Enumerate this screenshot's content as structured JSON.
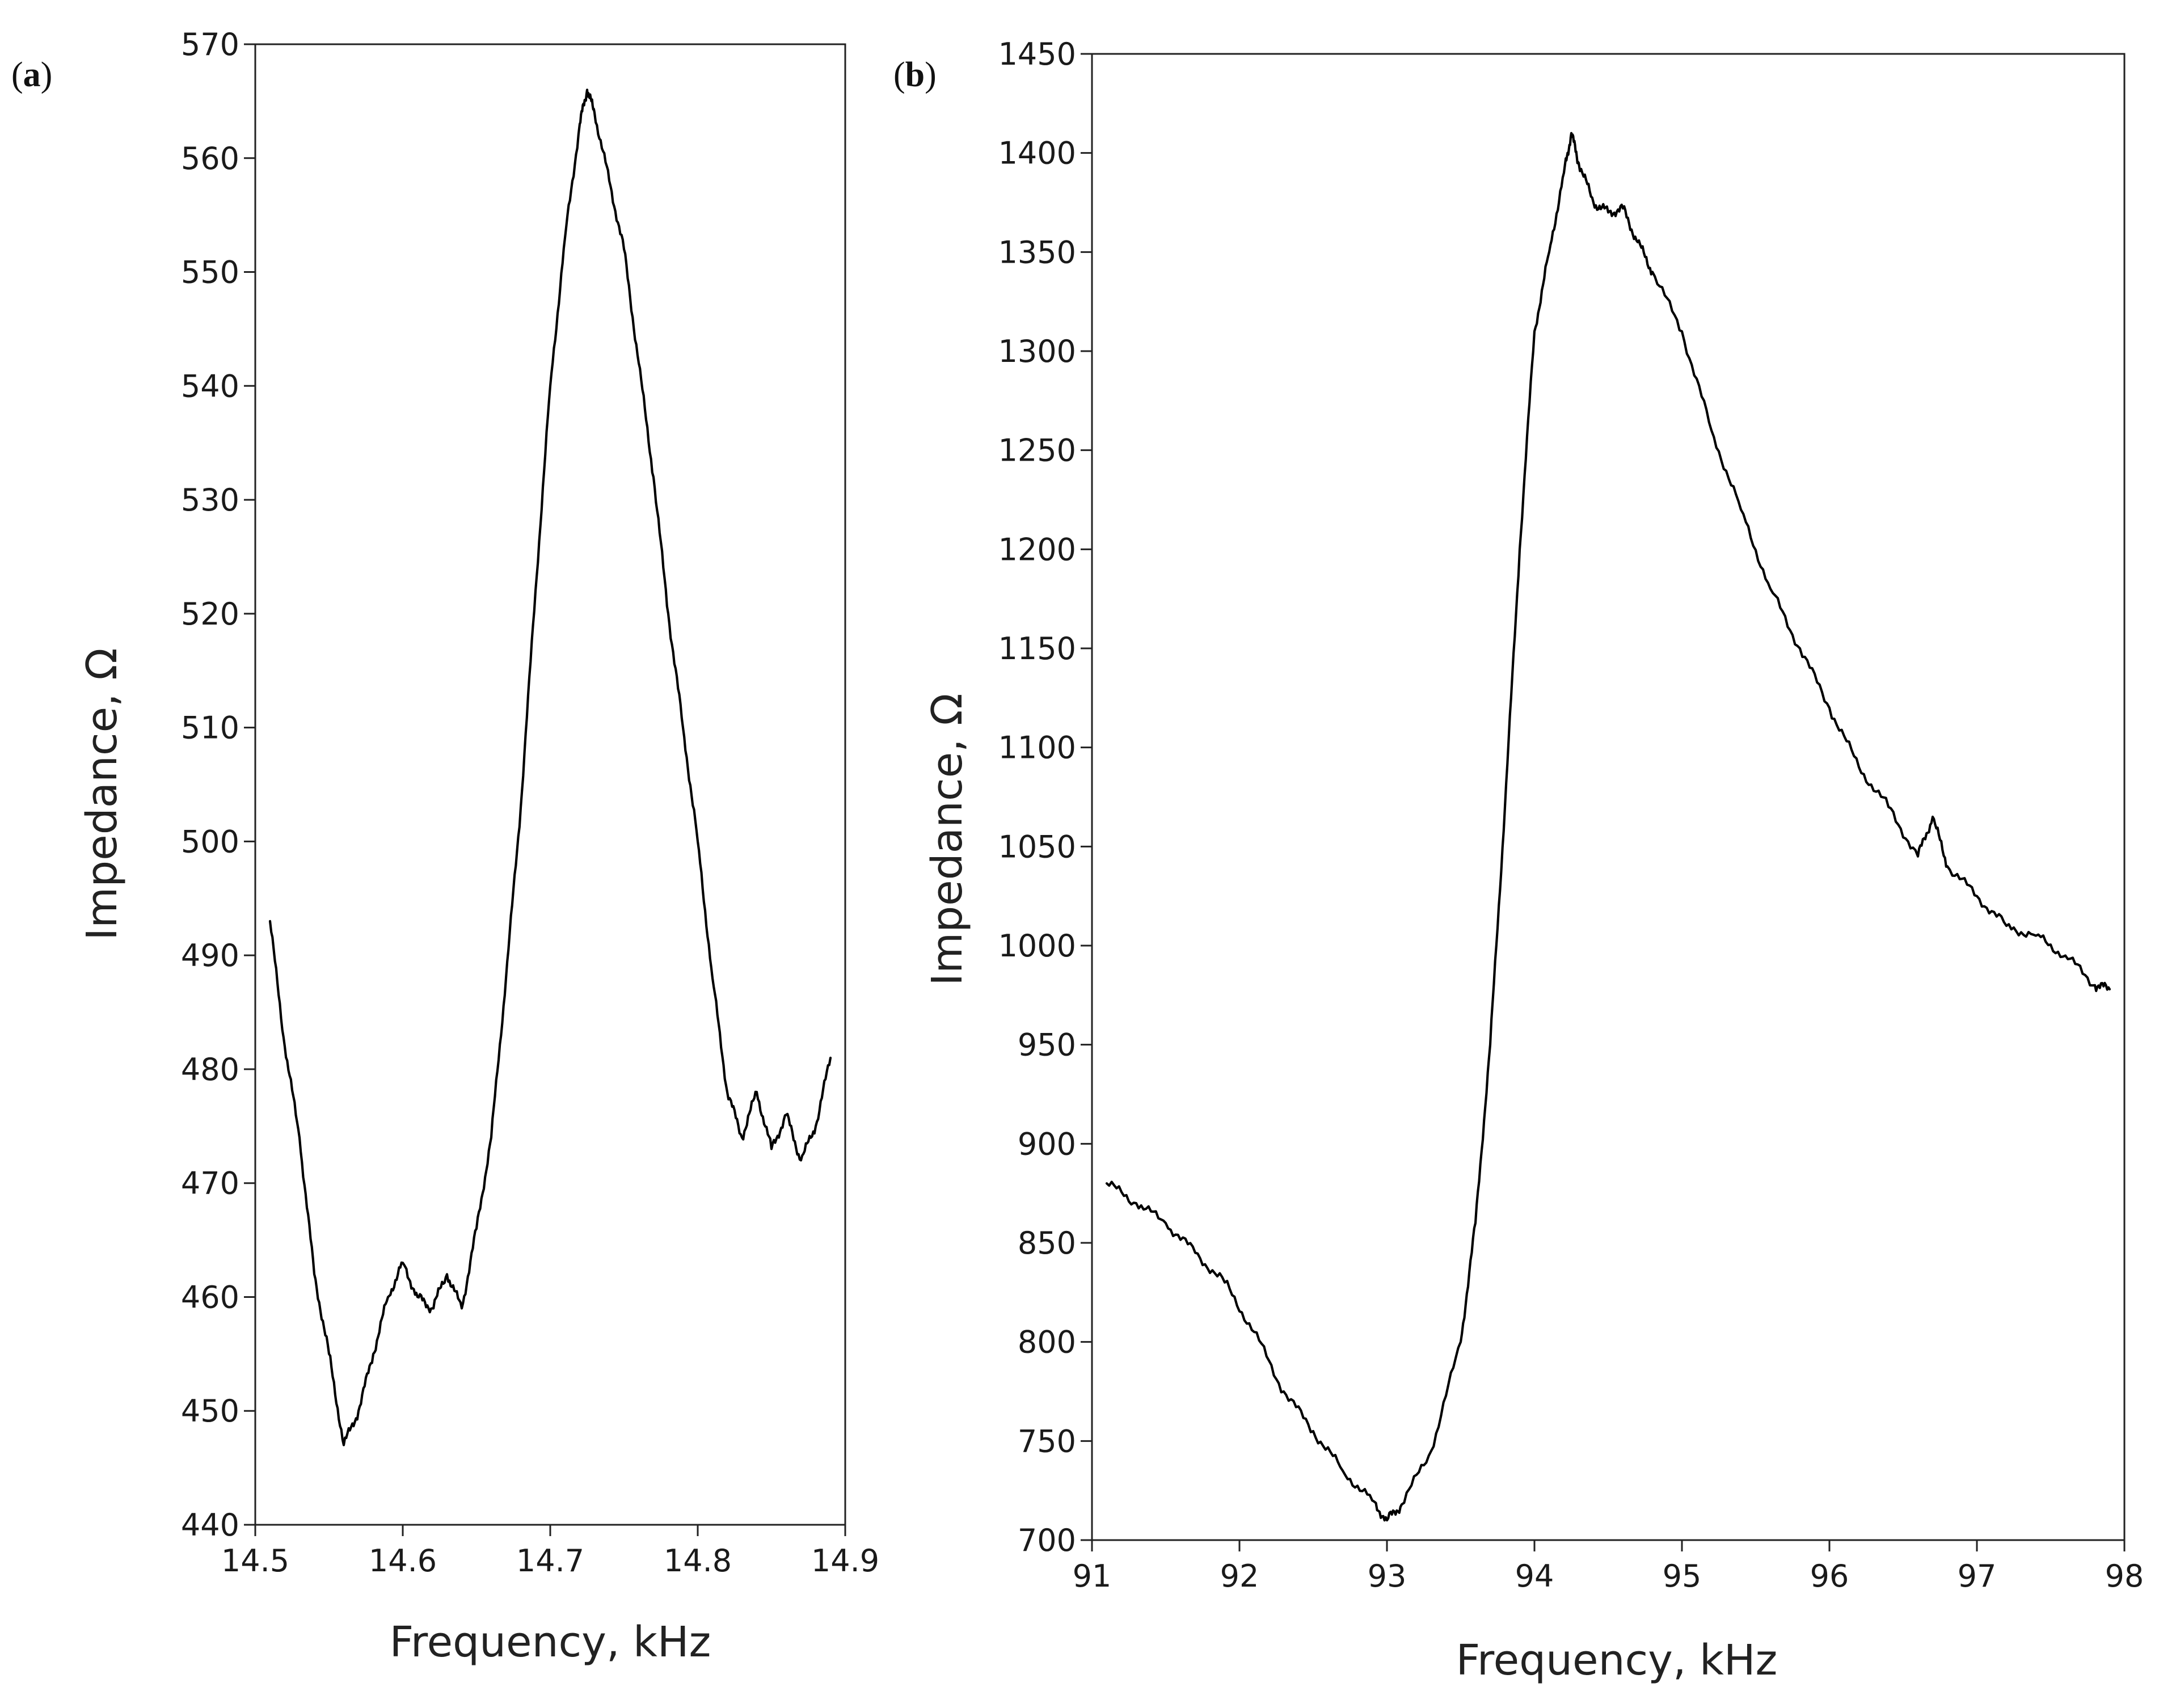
{
  "chart_data": [
    {
      "type": "line",
      "panel_label": "a",
      "xlabel": "Frequency, kHz",
      "ylabel": "Impedance, Ω",
      "xlim": [
        14.5,
        14.9
      ],
      "ylim": [
        440,
        570
      ],
      "xticks": [
        "14.5",
        "14.6",
        "14.7",
        "14.8",
        "14.9"
      ],
      "yticks": [
        "440",
        "450",
        "460",
        "470",
        "480",
        "490",
        "500",
        "510",
        "520",
        "530",
        "540",
        "550",
        "560",
        "570"
      ],
      "grid": false,
      "series": [
        {
          "name": "impedance",
          "color": "#000000",
          "x": [
            14.51,
            14.52,
            14.53,
            14.54,
            14.55,
            14.56,
            14.57,
            14.58,
            14.59,
            14.6,
            14.61,
            14.62,
            14.63,
            14.64,
            14.65,
            14.66,
            14.67,
            14.68,
            14.69,
            14.7,
            14.71,
            14.72,
            14.725,
            14.73,
            14.74,
            14.75,
            14.76,
            14.77,
            14.78,
            14.79,
            14.8,
            14.81,
            14.82,
            14.83,
            14.84,
            14.85,
            14.86,
            14.87,
            14.88,
            14.89
          ],
          "y": [
            493,
            482,
            474,
            462,
            455,
            447,
            450,
            455,
            460,
            463,
            460,
            459,
            462,
            459,
            466,
            474,
            488,
            503,
            522,
            540,
            553,
            563,
            566,
            564,
            558,
            552,
            542,
            532,
            520,
            510,
            500,
            488,
            478,
            474,
            478,
            473,
            476,
            472,
            475,
            481
          ]
        }
      ]
    },
    {
      "type": "line",
      "panel_label": "b",
      "xlabel": "Frequency, kHz",
      "ylabel": "Impedance, Ω",
      "xlim": [
        91,
        98
      ],
      "ylim": [
        700,
        1450
      ],
      "xticks": [
        "91",
        "92",
        "93",
        "94",
        "95",
        "96",
        "97",
        "98"
      ],
      "yticks": [
        "700",
        "750",
        "800",
        "850",
        "900",
        "950",
        "1000",
        "1050",
        "1100",
        "1150",
        "1200",
        "1250",
        "1300",
        "1350",
        "1400",
        "1450"
      ],
      "grid": false,
      "series": [
        {
          "name": "impedance",
          "color": "#000000",
          "x": [
            91.1,
            91.3,
            91.5,
            91.7,
            91.9,
            92.1,
            92.3,
            92.5,
            92.7,
            92.9,
            93.0,
            93.1,
            93.3,
            93.5,
            93.6,
            93.7,
            93.8,
            93.9,
            94.0,
            94.1,
            94.2,
            94.25,
            94.3,
            94.4,
            94.5,
            94.6,
            94.7,
            94.8,
            95.0,
            95.2,
            95.4,
            95.6,
            95.8,
            96.0,
            96.2,
            96.4,
            96.6,
            96.7,
            96.8,
            97.0,
            97.2,
            97.4,
            97.6,
            97.8,
            97.9
          ],
          "y": [
            880,
            870,
            860,
            845,
            830,
            805,
            775,
            755,
            735,
            720,
            710,
            718,
            745,
            800,
            860,
            950,
            1070,
            1200,
            1310,
            1350,
            1390,
            1410,
            1395,
            1375,
            1370,
            1372,
            1355,
            1340,
            1310,
            1260,
            1220,
            1180,
            1150,
            1120,
            1090,
            1070,
            1045,
            1065,
            1040,
            1025,
            1010,
            1005,
            995,
            980,
            978
          ]
        }
      ]
    }
  ]
}
